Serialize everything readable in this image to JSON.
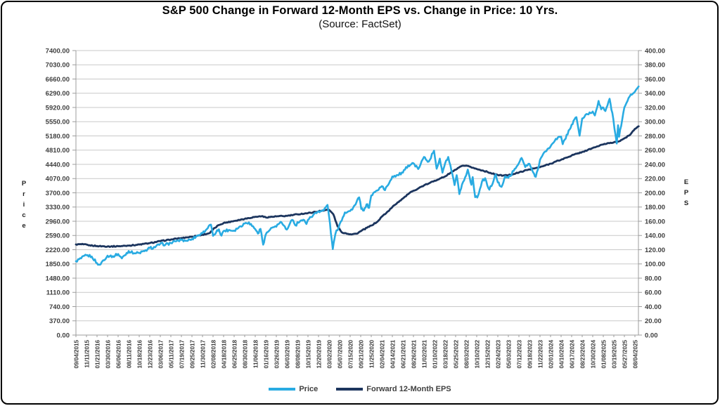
{
  "chart_data": {
    "type": "line",
    "title": "S&P 500 Change in Forward 12-Month EPS vs. Change in Price: 10 Yrs.",
    "subtitle": "(Source: FactSet)",
    "grid": "horizontal",
    "legend_position": "bottom-center",
    "x_unit": "tick index: 0 = 09/04/2015 ... 53 = 08/04/2025, weekly/daily dates in between",
    "x_tick_labels": [
      "09/04/2015",
      "11/11/2015",
      "01/21/2016",
      "03/30/2016",
      "06/06/2016",
      "08/11/2016",
      "10/18/2016",
      "12/23/2016",
      "03/06/2017",
      "05/11/2017",
      "07/19/2017",
      "09/25/2017",
      "11/30/2017",
      "02/08/2018",
      "04/18/2018",
      "06/25/2018",
      "08/30/2018",
      "11/06/2018",
      "01/16/2019",
      "03/26/2019",
      "06/03/2019",
      "08/08/2019",
      "10/15/2019",
      "12/20/2019",
      "03/02/2020",
      "05/07/2020",
      "07/15/2020",
      "09/21/2020",
      "11/25/2020",
      "02/04/2021",
      "04/14/2021",
      "06/21/2021",
      "08/26/2021",
      "11/02/2021",
      "01/10/2022",
      "03/18/2022",
      "05/25/2022",
      "08/03/2022",
      "10/10/2022",
      "12/15/2022",
      "02/24/2023",
      "05/03/2023",
      "07/12/2023",
      "09/18/2023",
      "11/22/2023",
      "02/01/2024",
      "04/10/2024",
      "06/17/2024",
      "08/23/2024",
      "10/30/2024",
      "01/08/2025",
      "03/19/2025",
      "05/27/2025",
      "08/04/2025"
    ],
    "left_axis": {
      "label": "Price",
      "ylim": [
        0,
        7400
      ],
      "step": 370,
      "tick_labels": [
        "0.00",
        "370.00",
        "740.00",
        "1110.00",
        "1480.00",
        "1850.00",
        "2220.00",
        "2590.00",
        "2960.00",
        "3330.00",
        "3700.00",
        "4070.00",
        "4440.00",
        "4810.00",
        "5180.00",
        "5550.00",
        "5920.00",
        "6290.00",
        "6660.00",
        "7030.00",
        "7400.00"
      ]
    },
    "right_axis": {
      "label": "EPS",
      "ylim": [
        0,
        400
      ],
      "step": 20,
      "tick_labels": [
        "0.00",
        "20.00",
        "40.00",
        "60.00",
        "80.00",
        "100.00",
        "120.00",
        "140.00",
        "160.00",
        "180.00",
        "200.00",
        "220.00",
        "240.00",
        "260.00",
        "280.00",
        "300.00",
        "320.00",
        "340.00",
        "360.00",
        "380.00",
        "400.00"
      ]
    },
    "legend": {
      "entries": [
        {
          "id": "price",
          "name": "Price",
          "color": "#29abe2"
        },
        {
          "id": "eps",
          "name": "Forward 12-Month EPS",
          "color": "#1c355e"
        }
      ]
    },
    "series": [
      {
        "id": "eps",
        "name": "Forward 12-Month EPS",
        "axis": "right",
        "color": "#1c355e",
        "points": [
          [
            0,
            127.4
          ],
          [
            0.7,
            127.6
          ],
          [
            1.3,
            126.3
          ],
          [
            2,
            125.2
          ],
          [
            3,
            124.6
          ],
          [
            4,
            124.8
          ],
          [
            5,
            125.8
          ],
          [
            6,
            127.2
          ],
          [
            7,
            129.3
          ],
          [
            8,
            132
          ],
          [
            9,
            134.3
          ],
          [
            10,
            136.5
          ],
          [
            11,
            138.3
          ],
          [
            12,
            141
          ],
          [
            12.7,
            143.5
          ],
          [
            13,
            148.5
          ],
          [
            13.5,
            154.5
          ],
          [
            14,
            157.5
          ],
          [
            15,
            160.5
          ],
          [
            16,
            163.5
          ],
          [
            17,
            166.3
          ],
          [
            17.6,
            167
          ],
          [
            18,
            165.5
          ],
          [
            19,
            166.8
          ],
          [
            20,
            167.5
          ],
          [
            21,
            169.8
          ],
          [
            22,
            171.5
          ],
          [
            23,
            174
          ],
          [
            23.8,
            176.3
          ],
          [
            24,
            176
          ],
          [
            24.4,
            170
          ],
          [
            24.8,
            153
          ],
          [
            25.2,
            144.5
          ],
          [
            26,
            141.8
          ],
          [
            26.6,
            142.5
          ],
          [
            27,
            146
          ],
          [
            28,
            154
          ],
          [
            28.6,
            159.5
          ],
          [
            29,
            166.5
          ],
          [
            29.6,
            174
          ],
          [
            30,
            180
          ],
          [
            30.5,
            186.5
          ],
          [
            31,
            192
          ],
          [
            31.5,
            198
          ],
          [
            32,
            203
          ],
          [
            32.5,
            206.5
          ],
          [
            33,
            210.5
          ],
          [
            33.5,
            213.5
          ],
          [
            34,
            217
          ],
          [
            34.5,
            220
          ],
          [
            35,
            223
          ],
          [
            35.5,
            228
          ],
          [
            36,
            232.5
          ],
          [
            36.4,
            236.5
          ],
          [
            36.8,
            238
          ],
          [
            37.3,
            237
          ],
          [
            38,
            233.5
          ],
          [
            38.5,
            231.5
          ],
          [
            39,
            229.5
          ],
          [
            39.5,
            227
          ],
          [
            40,
            225
          ],
          [
            40.5,
            224.3
          ],
          [
            41,
            224.8
          ],
          [
            41.5,
            226.5
          ],
          [
            42,
            228.5
          ],
          [
            42.5,
            231
          ],
          [
            43,
            233
          ],
          [
            43.5,
            234.5
          ],
          [
            44,
            236
          ],
          [
            44.5,
            238.5
          ],
          [
            45,
            241
          ],
          [
            45.5,
            244
          ],
          [
            46,
            246.5
          ],
          [
            46.5,
            249.5
          ],
          [
            47,
            252.5
          ],
          [
            47.5,
            255
          ],
          [
            48,
            257.5
          ],
          [
            48.5,
            260
          ],
          [
            49,
            263
          ],
          [
            49.5,
            265.5
          ],
          [
            50,
            268
          ],
          [
            50.5,
            270
          ],
          [
            51,
            271
          ],
          [
            51.4,
            272
          ],
          [
            52,
            276.5
          ],
          [
            52.5,
            281
          ],
          [
            53,
            290
          ],
          [
            53.35,
            293.5
          ]
        ]
      },
      {
        "id": "price",
        "name": "Price",
        "axis": "left",
        "color": "#29abe2",
        "points": [
          [
            0,
            1921
          ],
          [
            0.5,
            1995
          ],
          [
            1,
            2075
          ],
          [
            1.5,
            2043
          ],
          [
            2,
            1869
          ],
          [
            2.25,
            1829
          ],
          [
            2.6,
            1948
          ],
          [
            3,
            2064
          ],
          [
            3.5,
            2051
          ],
          [
            4,
            2109
          ],
          [
            4.35,
            1995
          ],
          [
            5,
            2186
          ],
          [
            5.5,
            2126
          ],
          [
            6,
            2140
          ],
          [
            6.5,
            2182
          ],
          [
            7,
            2264
          ],
          [
            7.5,
            2281
          ],
          [
            8,
            2375
          ],
          [
            8.5,
            2356
          ],
          [
            9,
            2394
          ],
          [
            9.5,
            2438
          ],
          [
            10,
            2474
          ],
          [
            10.5,
            2453
          ],
          [
            11,
            2497
          ],
          [
            11.5,
            2581
          ],
          [
            12,
            2648
          ],
          [
            12.8,
            2873
          ],
          [
            13,
            2581
          ],
          [
            13.3,
            2678
          ],
          [
            13.55,
            2749
          ],
          [
            13.8,
            2588
          ],
          [
            14,
            2708
          ],
          [
            14.5,
            2733
          ],
          [
            15,
            2717
          ],
          [
            15.5,
            2819
          ],
          [
            16,
            2901
          ],
          [
            16.4,
            2931
          ],
          [
            17,
            2755
          ],
          [
            17.25,
            2641
          ],
          [
            17.5,
            2760
          ],
          [
            17.75,
            2351
          ],
          [
            18,
            2616
          ],
          [
            18.5,
            2785
          ],
          [
            19,
            2818
          ],
          [
            19.4,
            2946
          ],
          [
            20,
            2744
          ],
          [
            20.5,
            2996
          ],
          [
            20.9,
            2845
          ],
          [
            21,
            2938
          ],
          [
            21.55,
            3001
          ],
          [
            21.85,
            2888
          ],
          [
            22,
            2996
          ],
          [
            22.5,
            3122
          ],
          [
            23,
            3221
          ],
          [
            23.5,
            3244
          ],
          [
            23.85,
            3386
          ],
          [
            24,
            3090
          ],
          [
            24.35,
            2237
          ],
          [
            24.6,
            2630
          ],
          [
            25,
            2881
          ],
          [
            25.5,
            3190
          ],
          [
            26,
            3226
          ],
          [
            26.5,
            3390
          ],
          [
            26.85,
            3581
          ],
          [
            27.05,
            3281
          ],
          [
            27.3,
            3237
          ],
          [
            27.55,
            3401
          ],
          [
            27.8,
            3310
          ],
          [
            28,
            3630
          ],
          [
            28.5,
            3756
          ],
          [
            29,
            3872
          ],
          [
            29.3,
            3768
          ],
          [
            30,
            4125
          ],
          [
            30.5,
            4163
          ],
          [
            31,
            4225
          ],
          [
            31.5,
            4412
          ],
          [
            32,
            4470
          ],
          [
            32.45,
            4320
          ],
          [
            33,
            4631
          ],
          [
            33.45,
            4513
          ],
          [
            33.95,
            4797
          ],
          [
            34.2,
            4326
          ],
          [
            34.5,
            4589
          ],
          [
            34.75,
            4225
          ],
          [
            35,
            4463
          ],
          [
            35.3,
            4631
          ],
          [
            35.9,
            3901
          ],
          [
            36.1,
            4158
          ],
          [
            36.35,
            3667
          ],
          [
            36.6,
            3912
          ],
          [
            37,
            4155
          ],
          [
            37.15,
            4305
          ],
          [
            37.5,
            3908
          ],
          [
            37.62,
            4110
          ],
          [
            37.85,
            3586
          ],
          [
            38.05,
            3577
          ],
          [
            38.3,
            3797
          ],
          [
            38.5,
            3993
          ],
          [
            38.8,
            4080
          ],
          [
            39,
            3896
          ],
          [
            39.2,
            3783
          ],
          [
            39.6,
            4016
          ],
          [
            39.8,
            4179
          ],
          [
            40,
            3970
          ],
          [
            40.35,
            3856
          ],
          [
            40.7,
            4130
          ],
          [
            41,
            4091
          ],
          [
            41.5,
            4268
          ],
          [
            42,
            4472
          ],
          [
            42.25,
            4607
          ],
          [
            42.6,
            4370
          ],
          [
            43,
            4454
          ],
          [
            43.35,
            4229
          ],
          [
            43.6,
            4117
          ],
          [
            44,
            4557
          ],
          [
            44.5,
            4774
          ],
          [
            45,
            4906
          ],
          [
            45.5,
            5105
          ],
          [
            46,
            5161
          ],
          [
            46.15,
            4967
          ],
          [
            47,
            5473
          ],
          [
            47.45,
            5667
          ],
          [
            47.75,
            5186
          ],
          [
            48,
            5635
          ],
          [
            48.5,
            5745
          ],
          [
            49,
            5814
          ],
          [
            49.2,
            5712
          ],
          [
            49.55,
            6090
          ],
          [
            49.8,
            5872
          ],
          [
            50,
            5918
          ],
          [
            50.2,
            5827
          ],
          [
            50.6,
            6147
          ],
          [
            50.95,
            5614
          ],
          [
            51.28,
            4983
          ],
          [
            51.4,
            5457
          ],
          [
            51.5,
            5158
          ],
          [
            52,
            5922
          ],
          [
            52.5,
            6205
          ],
          [
            53,
            6330
          ],
          [
            53.35,
            6466
          ]
        ]
      }
    ]
  },
  "style": {
    "background": "#ffffff",
    "border_color": "#000000",
    "grid_color": "#c9c9c9",
    "axis_color": "#9c9c9c",
    "tick_label_color": "#3f3f3f",
    "title_color": "#000000",
    "price_jitter": 34,
    "eps_jitter": 0.7
  }
}
